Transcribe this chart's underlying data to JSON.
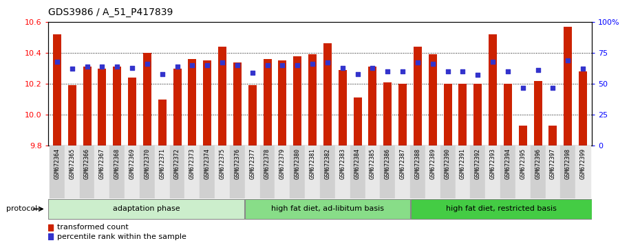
{
  "title": "GDS3986 / A_51_P417839",
  "samples": [
    "GSM672364",
    "GSM672365",
    "GSM672366",
    "GSM672367",
    "GSM672368",
    "GSM672369",
    "GSM672370",
    "GSM672371",
    "GSM672372",
    "GSM672373",
    "GSM672374",
    "GSM672375",
    "GSM672376",
    "GSM672377",
    "GSM672378",
    "GSM672379",
    "GSM672380",
    "GSM672381",
    "GSM672382",
    "GSM672383",
    "GSM672384",
    "GSM672385",
    "GSM672386",
    "GSM672387",
    "GSM672388",
    "GSM672389",
    "GSM672390",
    "GSM672391",
    "GSM672392",
    "GSM672393",
    "GSM672394",
    "GSM672395",
    "GSM672396",
    "GSM672397",
    "GSM672398",
    "GSM672399"
  ],
  "bar_values": [
    10.52,
    10.19,
    10.31,
    10.3,
    10.31,
    10.24,
    10.4,
    10.1,
    10.3,
    10.36,
    10.35,
    10.44,
    10.34,
    10.19,
    10.36,
    10.35,
    10.38,
    10.39,
    10.46,
    10.29,
    10.11,
    10.31,
    10.21,
    10.2,
    10.44,
    10.39,
    10.2,
    10.2,
    10.2,
    10.52,
    10.2,
    9.93,
    10.22,
    9.93,
    10.57,
    10.28
  ],
  "dot_values": [
    68,
    62,
    64,
    64,
    64,
    63,
    66,
    58,
    64,
    65,
    65,
    67,
    65,
    59,
    65,
    65,
    65,
    66,
    67,
    63,
    58,
    63,
    60,
    60,
    67,
    66,
    60,
    60,
    57,
    68,
    60,
    47,
    61,
    47,
    69,
    62
  ],
  "ylim_left": [
    9.8,
    10.6
  ],
  "ylim_right": [
    0,
    100
  ],
  "yticks_left": [
    9.8,
    10.0,
    10.2,
    10.4,
    10.6
  ],
  "yticks_right": [
    0,
    25,
    50,
    75,
    100
  ],
  "ytick_labels_right": [
    "0",
    "25",
    "50",
    "75",
    "100%"
  ],
  "bar_color": "#cc2200",
  "dot_color": "#3333cc",
  "groups": [
    {
      "label": "adaptation phase",
      "start": 0,
      "end": 13,
      "color": "#cceecc"
    },
    {
      "label": "high fat diet, ad-libitum basis",
      "start": 13,
      "end": 24,
      "color": "#88dd88"
    },
    {
      "label": "high fat diet, restricted basis",
      "start": 24,
      "end": 36,
      "color": "#44cc44"
    }
  ],
  "legend_bar_label": "transformed count",
  "legend_dot_label": "percentile rank within the sample",
  "protocol_label": "protocol",
  "x_label_fontsize": 6.0,
  "title_fontsize": 10
}
